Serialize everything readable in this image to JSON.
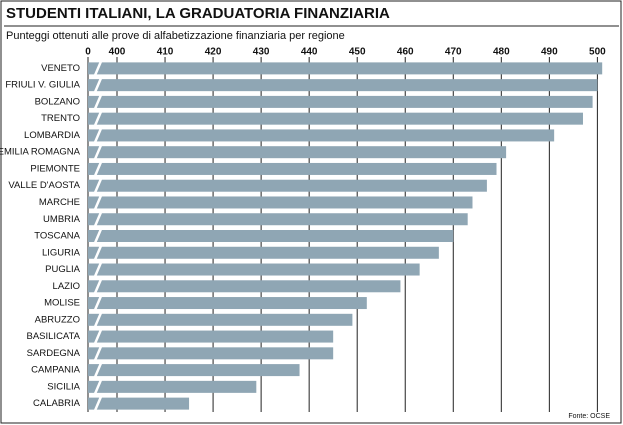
{
  "chart_data": {
    "type": "barh",
    "title": "STUDENTI ITALIANI, LA GRADUATORIA FINANZIARIA",
    "subtitle": "Punteggi ottenuti alle prove di alfabetizzazione finanziaria per regione",
    "source": "Fonte: OCSE",
    "categories": [
      "VENETO",
      "FRIULI V. GIULIA",
      "BOLZANO",
      "TRENTO",
      "LOMBARDIA",
      "EMILIA ROMAGNA",
      "PIEMONTE",
      "VALLE D'AOSTA",
      "MARCHE",
      "UMBRIA",
      "TOSCANA",
      "LIGURIA",
      "PUGLIA",
      "LAZIO",
      "MOLISE",
      "ABRUZZO",
      "BASILICATA",
      "SARDEGNA",
      "CAMPANIA",
      "SICILIA",
      "CALABRIA"
    ],
    "values": [
      501,
      500,
      499,
      497,
      491,
      481,
      479,
      477,
      474,
      473,
      470,
      467,
      463,
      459,
      452,
      449,
      445,
      445,
      438,
      429,
      415
    ],
    "color": "#8fa6b4",
    "xlim": [
      0,
      502
    ],
    "xticks": [
      0,
      400,
      410,
      420,
      430,
      440,
      450,
      460,
      470,
      480,
      490,
      500
    ],
    "axis_break": true,
    "grid": true
  }
}
